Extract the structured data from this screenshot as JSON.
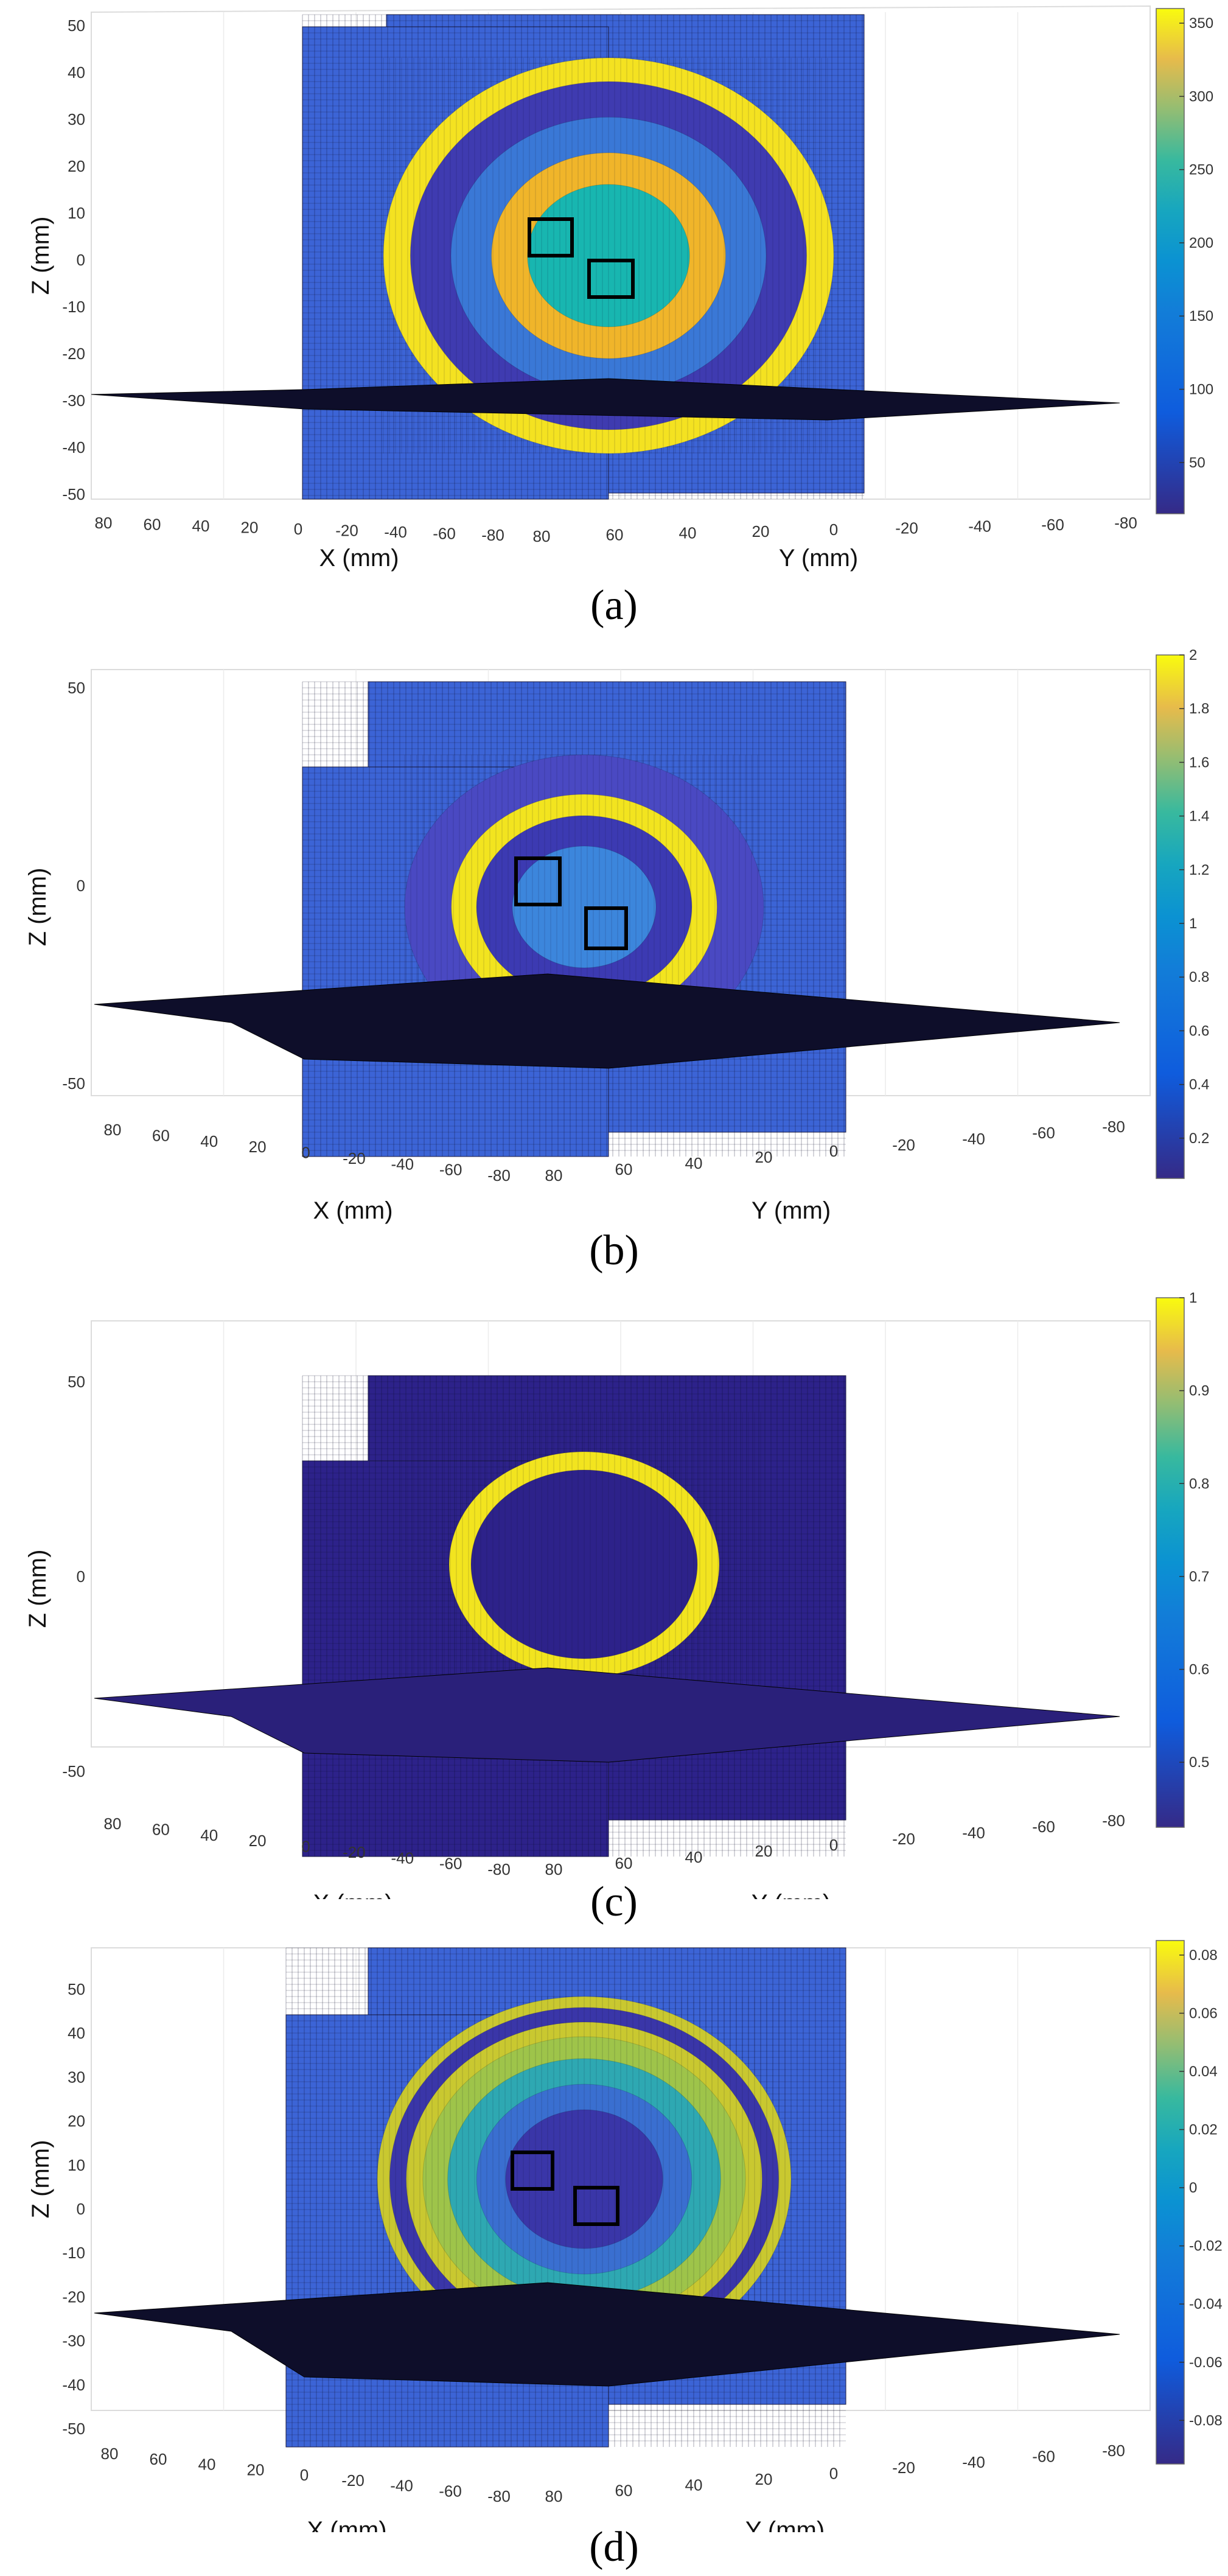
{
  "chart_data": [
    {
      "type": "heatmap",
      "panel_label": "a",
      "xlabel": "X (mm)",
      "ylabel": "Y (mm)",
      "zlabel": "Z (mm)",
      "z_ticks": [
        "50",
        "40",
        "30",
        "20",
        "10",
        "0",
        "-10",
        "-20",
        "-30",
        "-40",
        "-50"
      ],
      "x_ticks": [
        "80",
        "60",
        "40",
        "20",
        "0",
        "-20",
        "-40",
        "-60",
        "-80"
      ],
      "y_ticks": [
        "80",
        "60",
        "40",
        "20",
        "0",
        "-20",
        "-40",
        "-60",
        "-80"
      ],
      "colorbar": {
        "min": 15,
        "max": 360,
        "ticks": [
          "350",
          "300",
          "250",
          "200",
          "150",
          "100",
          "50"
        ],
        "tick_values": [
          350,
          300,
          250,
          200,
          150,
          100,
          50
        ]
      },
      "slice_plane_z": -30,
      "roi_boxes": 2,
      "plane_color": "#0e0e2a",
      "rings": [
        {
          "r": 1.0,
          "color": "#f4e221"
        },
        {
          "r": 0.88,
          "color": "#3f3bb0"
        },
        {
          "r": 0.7,
          "color": "#3a78d6"
        },
        {
          "r": 0.52,
          "color": "#f0b52a"
        },
        {
          "r": 0.36,
          "color": "#18b6b0"
        }
      ]
    },
    {
      "type": "heatmap",
      "panel_label": "b",
      "xlabel": "X (mm)",
      "ylabel": "Y (mm)",
      "zlabel": "Z (mm)",
      "z_ticks": [
        "50",
        "0",
        "-50"
      ],
      "x_ticks": [
        "80",
        "60",
        "40",
        "20",
        "0",
        "-20",
        "-40",
        "-60",
        "-80"
      ],
      "y_ticks": [
        "80",
        "60",
        "40",
        "20",
        "0",
        "-20",
        "-40",
        "-60",
        "-80"
      ],
      "colorbar": {
        "min": 0.05,
        "max": 2,
        "ticks": [
          "2",
          "1.8",
          "1.6",
          "1.4",
          "1.2",
          "1",
          "0.8",
          "0.6",
          "0.4",
          "0.2"
        ],
        "tick_values": [
          2,
          1.8,
          1.6,
          1.4,
          1.2,
          1,
          0.8,
          0.6,
          0.4,
          0.2
        ]
      },
      "slice_plane_z": -30,
      "roi_boxes": 2,
      "plane_color": "#0e0e2a",
      "rings": [
        {
          "r": 1.0,
          "color": "#4a49c2"
        },
        {
          "r": 0.74,
          "color": "#f2e41f"
        },
        {
          "r": 0.6,
          "color": "#3c3ab2"
        },
        {
          "r": 0.4,
          "color": "#3c86dc"
        }
      ]
    },
    {
      "type": "heatmap",
      "panel_label": "c",
      "xlabel": "X (mm)",
      "ylabel": "Y (mm)",
      "zlabel": "Z (mm)",
      "z_ticks": [
        "50",
        "0",
        "-50"
      ],
      "x_ticks": [
        "80",
        "60",
        "40",
        "20",
        "0",
        "-20",
        "-40",
        "-60",
        "-80"
      ],
      "y_ticks": [
        "80",
        "60",
        "40",
        "20",
        "0",
        "-20",
        "-40",
        "-60",
        "-80"
      ],
      "colorbar": {
        "min": 0.43,
        "max": 1,
        "ticks": [
          "1",
          "0.9",
          "0.8",
          "0.7",
          "0.6",
          "0.5"
        ],
        "tick_values": [
          1,
          0.9,
          0.8,
          0.7,
          0.6,
          0.5
        ]
      },
      "slice_plane_z": -30,
      "roi_boxes": 0,
      "plane_color": "#2a207a",
      "rings": [
        {
          "r": 0.74,
          "color": "#f2e41f"
        },
        {
          "r": 0.62,
          "color": "#2d228a"
        }
      ]
    },
    {
      "type": "heatmap",
      "panel_label": "d",
      "xlabel": "X (mm)",
      "ylabel": "Y (mm)",
      "zlabel": "Z (mm)",
      "z_ticks": [
        "50",
        "40",
        "30",
        "20",
        "10",
        "0",
        "-10",
        "-20",
        "-30",
        "-40",
        "-50"
      ],
      "x_ticks": [
        "80",
        "60",
        "40",
        "20",
        "0",
        "-20",
        "-40",
        "-60",
        "-80"
      ],
      "y_ticks": [
        "80",
        "60",
        "40",
        "20",
        "0",
        "-20",
        "-40",
        "-60",
        "-80"
      ],
      "colorbar": {
        "min": -0.095,
        "max": 0.085,
        "ticks": [
          "0.08",
          "0.06",
          "0.04",
          "0.02",
          "0",
          "-0.02",
          "-0.04",
          "-0.06",
          "-0.08"
        ],
        "tick_values": [
          0.08,
          0.06,
          0.04,
          0.02,
          0,
          -0.02,
          -0.04,
          -0.06,
          -0.08
        ]
      },
      "slice_plane_z": -30,
      "roi_boxes": 2,
      "plane_color": "#0e0e2a",
      "rings": [
        {
          "r": 1.0,
          "color": "#c9c830"
        },
        {
          "r": 0.94,
          "color": "#3a36a8"
        },
        {
          "r": 0.86,
          "color": "#c9c830"
        },
        {
          "r": 0.78,
          "color": "#9ec44a"
        },
        {
          "r": 0.66,
          "color": "#2ea8b2"
        },
        {
          "r": 0.52,
          "color": "#3a6fd0"
        },
        {
          "r": 0.38,
          "color": "#3a36a8"
        }
      ]
    }
  ],
  "captions": [
    "(a)",
    "(b)",
    "(c)",
    "(d)"
  ]
}
